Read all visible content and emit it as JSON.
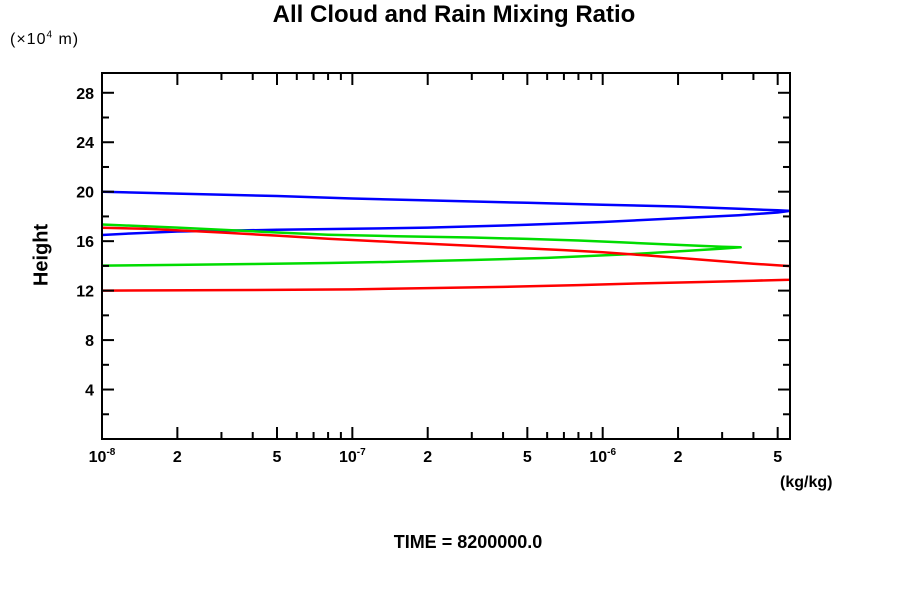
{
  "chart_data": {
    "type": "line",
    "title": "All Cloud and Rain Mixing Ratio",
    "ylabel": "Height",
    "y_unit": {
      "prefix": "(×10",
      "sup": "4",
      "suffix": " m)"
    },
    "x_unit": "(kg/kg)",
    "time_label": "TIME = 8200000.0",
    "x_axis": {
      "scale": "log",
      "min": 1e-08,
      "max": 5.6e-06,
      "label": "(kg/kg)"
    },
    "y_axis": {
      "min": 0,
      "max": 29.6,
      "label": "Height (x10^4 m)"
    },
    "grid": false,
    "legend": "none",
    "x_ticks": [
      {
        "value": 1e-08,
        "label": "10",
        "exp": "-8"
      },
      {
        "value": 2e-08,
        "label": "2"
      },
      {
        "value": 3e-08
      },
      {
        "value": 4e-08
      },
      {
        "value": 5e-08,
        "label": "5"
      },
      {
        "value": 6e-08
      },
      {
        "value": 7e-08
      },
      {
        "value": 8e-08
      },
      {
        "value": 9e-08
      },
      {
        "value": 1e-07,
        "label": "10",
        "exp": "-7"
      },
      {
        "value": 2e-07,
        "label": "2"
      },
      {
        "value": 3e-07
      },
      {
        "value": 4e-07
      },
      {
        "value": 5e-07,
        "label": "5"
      },
      {
        "value": 6e-07
      },
      {
        "value": 7e-07
      },
      {
        "value": 8e-07
      },
      {
        "value": 9e-07
      },
      {
        "value": 1e-06,
        "label": "10",
        "exp": "-6"
      },
      {
        "value": 2e-06,
        "label": "2"
      },
      {
        "value": 3e-06
      },
      {
        "value": 4e-06
      },
      {
        "value": 5e-06,
        "label": "5"
      }
    ],
    "y_ticks": [
      {
        "value": 2
      },
      {
        "value": 4,
        "label": "4"
      },
      {
        "value": 6
      },
      {
        "value": 8,
        "label": "8"
      },
      {
        "value": 10
      },
      {
        "value": 12,
        "label": "12"
      },
      {
        "value": 14
      },
      {
        "value": 16,
        "label": "16"
      },
      {
        "value": 18
      },
      {
        "value": 20,
        "label": "20"
      },
      {
        "value": 22
      },
      {
        "value": 24,
        "label": "24"
      },
      {
        "value": 26
      },
      {
        "value": 28,
        "label": "28"
      }
    ],
    "series": [
      {
        "name": "blue",
        "color": "#0000ff",
        "points": [
          [
            1e-08,
            20.0
          ],
          [
            2e-08,
            19.85
          ],
          [
            5e-08,
            19.65
          ],
          [
            1e-07,
            19.45
          ],
          [
            2e-07,
            19.3
          ],
          [
            5e-07,
            19.1
          ],
          [
            1e-06,
            18.95
          ],
          [
            2e-06,
            18.8
          ],
          [
            3.5e-06,
            18.62
          ],
          [
            5e-06,
            18.5
          ],
          [
            5.6e-06,
            18.45
          ],
          [
            5e-06,
            18.32
          ],
          [
            3.5e-06,
            18.1
          ],
          [
            2e-06,
            17.85
          ],
          [
            1e-06,
            17.55
          ],
          [
            5e-07,
            17.32
          ],
          [
            2e-07,
            17.1
          ],
          [
            1e-07,
            17.0
          ],
          [
            5e-08,
            16.92
          ],
          [
            2e-08,
            16.78
          ],
          [
            1.3e-08,
            16.62
          ],
          [
            1e-08,
            16.5
          ]
        ]
      },
      {
        "name": "green",
        "color": "#00dc00",
        "points": [
          [
            1e-08,
            17.35
          ],
          [
            2e-08,
            17.1
          ],
          [
            5e-08,
            16.7
          ],
          [
            8e-08,
            16.52
          ],
          [
            1.5e-07,
            16.4
          ],
          [
            3e-07,
            16.3
          ],
          [
            5e-07,
            16.18
          ],
          [
            8e-07,
            16.05
          ],
          [
            1.2e-06,
            15.9
          ],
          [
            2e-06,
            15.7
          ],
          [
            3e-06,
            15.55
          ],
          [
            3.56e-06,
            15.5
          ],
          [
            3e-06,
            15.4
          ],
          [
            2.2e-06,
            15.22
          ],
          [
            1.5e-06,
            15.02
          ],
          [
            1e-06,
            14.85
          ],
          [
            6e-07,
            14.65
          ],
          [
            3e-07,
            14.48
          ],
          [
            1.5e-07,
            14.33
          ],
          [
            8e-08,
            14.23
          ],
          [
            4e-08,
            14.15
          ],
          [
            2e-08,
            14.08
          ],
          [
            1e-08,
            14.02
          ]
        ]
      },
      {
        "name": "red",
        "color": "#ff0000",
        "points": [
          [
            1e-08,
            17.08
          ],
          [
            1.5e-08,
            17.0
          ],
          [
            3e-08,
            16.7
          ],
          [
            5e-08,
            16.45
          ],
          [
            8e-08,
            16.2
          ],
          [
            1.5e-07,
            15.92
          ],
          [
            2.5e-07,
            15.7
          ],
          [
            4e-07,
            15.5
          ],
          [
            7e-07,
            15.28
          ],
          [
            1e-06,
            15.1
          ],
          [
            1.5e-06,
            14.85
          ],
          [
            2.5e-06,
            14.5
          ],
          [
            4e-06,
            14.18
          ],
          [
            5.6e-06,
            13.98
          ],
          [
            6.5e-06,
            13.6
          ],
          [
            6.8e-06,
            13.4
          ],
          [
            6.5e-06,
            13.2
          ],
          [
            5.6e-06,
            12.88
          ],
          [
            4e-06,
            12.8
          ],
          [
            2.5e-06,
            12.7
          ],
          [
            1.5e-06,
            12.6
          ],
          [
            8e-07,
            12.45
          ],
          [
            4e-07,
            12.3
          ],
          [
            2e-07,
            12.2
          ],
          [
            1e-07,
            12.1
          ],
          [
            4e-08,
            12.05
          ],
          [
            1e-08,
            12.0
          ]
        ]
      }
    ]
  }
}
